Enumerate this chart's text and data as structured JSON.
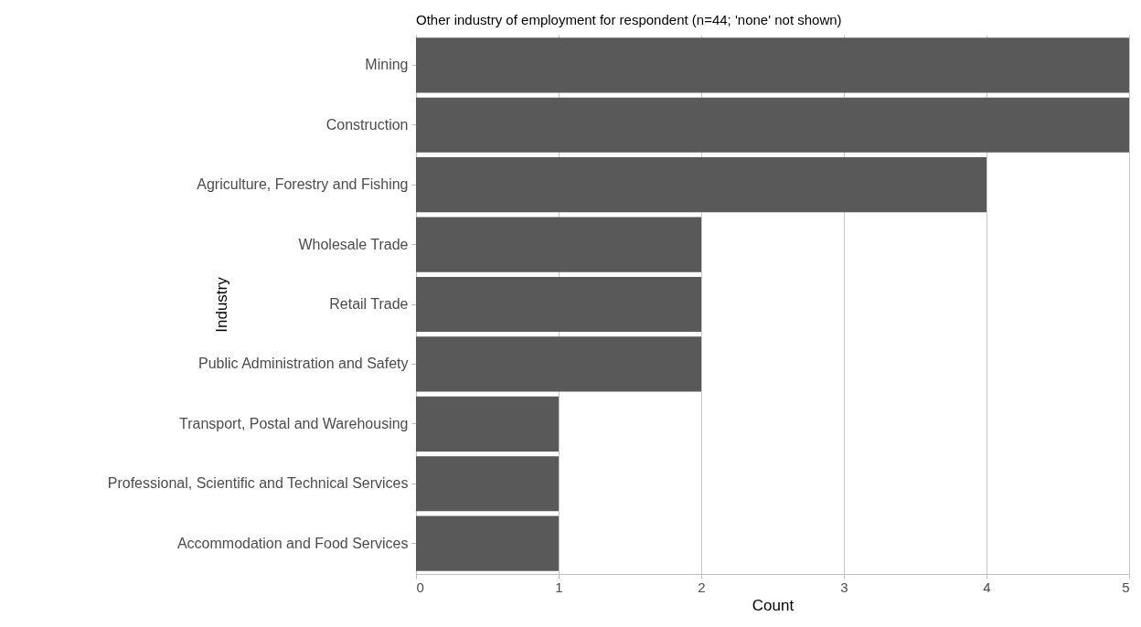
{
  "chart_data": {
    "type": "bar",
    "orientation": "horizontal",
    "title": "Other industry of employment for respondent (n=44; 'none' not shown)",
    "xlabel": "Count",
    "ylabel": "Industry",
    "categories": [
      "Mining",
      "Construction",
      "Agriculture, Forestry and Fishing",
      "Wholesale Trade",
      "Retail Trade",
      "Public Administration and Safety",
      "Transport, Postal and Warehousing",
      "Professional, Scientific and Technical Services",
      "Accommodation and Food Services"
    ],
    "values": [
      5,
      5,
      4,
      2,
      2,
      2,
      1,
      1,
      1
    ],
    "color": "#595959",
    "xlim": [
      0,
      5
    ],
    "xticks": [
      0,
      1,
      2,
      3,
      4,
      5
    ],
    "grid": "x"
  }
}
